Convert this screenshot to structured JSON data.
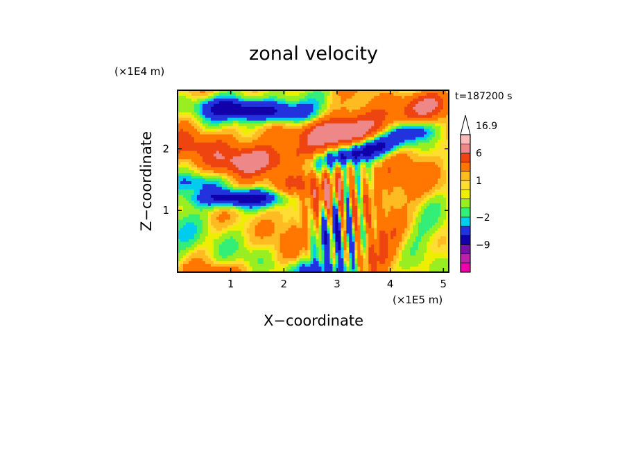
{
  "chart_data": {
    "type": "heatmap",
    "title": "zonal velocity",
    "time_label": "t=187200 s",
    "xlabel": "X−coordinate",
    "ylabel": "Z−coordinate",
    "x_units": "(×1E5 m)",
    "y_units": "(×1E4 m)",
    "xlim": [
      0,
      5.1
    ],
    "ylim": [
      0,
      2.95
    ],
    "x_ticks": [
      1,
      2,
      3,
      4,
      5
    ],
    "x_tick_labels": [
      "1",
      "2",
      "3",
      "4",
      "5"
    ],
    "y_ticks": [
      1,
      2
    ],
    "y_tick_labels": [
      "1",
      "2"
    ],
    "colorbar": {
      "labels": [
        {
          "text": "16.9",
          "value": 16.9
        },
        {
          "text": "6",
          "value": 6
        },
        {
          "text": "1",
          "value": 1
        },
        {
          "text": "−2",
          "value": -2
        },
        {
          "text": "−9",
          "value": -9
        }
      ],
      "bands": [
        {
          "level": -15,
          "color": "#ee00aa"
        },
        {
          "level": -12,
          "color": "#bb22aa"
        },
        {
          "level": -9,
          "color": "#7711aa"
        },
        {
          "level": -6,
          "color": "#1100aa"
        },
        {
          "level": -3,
          "color": "#2233dd"
        },
        {
          "level": -2,
          "color": "#00ccee"
        },
        {
          "level": -1,
          "color": "#33ee77"
        },
        {
          "level": 0,
          "color": "#99ee22"
        },
        {
          "level": 0.5,
          "color": "#eeee00"
        },
        {
          "level": 1,
          "color": "#ffdd33"
        },
        {
          "level": 2,
          "color": "#ffbb22"
        },
        {
          "level": 4,
          "color": "#ff7700"
        },
        {
          "level": 6,
          "color": "#ee4411"
        },
        {
          "level": 10,
          "color": "#ee8888"
        },
        {
          "level": 14,
          "color": "#ffbbbb"
        },
        {
          "level": 16.9,
          "color": "#ffffff"
        }
      ]
    },
    "field_features": [
      {
        "x": 1.0,
        "z": 2.65,
        "value": -8,
        "sx": 0.45,
        "sz": 0.12,
        "tilt": -0.05
      },
      {
        "x": 1.9,
        "z": 2.6,
        "value": -7,
        "sx": 0.45,
        "sz": 0.12,
        "tilt": -0.05
      },
      {
        "x": 3.2,
        "z": 2.3,
        "value": 7,
        "sx": 0.9,
        "sz": 0.2,
        "tilt": 0.15
      },
      {
        "x": 4.4,
        "z": 2.3,
        "value": -7,
        "sx": 0.3,
        "sz": 0.12,
        "tilt": 0.1
      },
      {
        "x": 4.7,
        "z": 2.75,
        "value": 4,
        "sx": 0.4,
        "sz": 0.15,
        "tilt": 0.0
      },
      {
        "x": 3.4,
        "z": 1.95,
        "value": -10,
        "sx": 0.55,
        "sz": 0.12,
        "tilt": 0.2
      },
      {
        "x": 0.4,
        "z": 2.05,
        "value": 4,
        "sx": 0.5,
        "sz": 0.2,
        "tilt": 0.0
      },
      {
        "x": 1.5,
        "z": 1.8,
        "value": 5,
        "sx": 0.7,
        "sz": 0.15,
        "tilt": 0.05
      },
      {
        "x": 1.2,
        "z": 1.2,
        "value": -9,
        "sx": 0.6,
        "sz": 0.1,
        "tilt": 0.0
      },
      {
        "x": 0.3,
        "z": 1.45,
        "value": -3,
        "sx": 0.4,
        "sz": 0.1,
        "tilt": 0.0
      },
      {
        "x": 2.3,
        "z": 1.35,
        "value": 3,
        "sx": 0.7,
        "sz": 0.25,
        "tilt": 0.0
      },
      {
        "x": 4.2,
        "z": 1.45,
        "value": 2,
        "sx": 0.8,
        "sz": 0.35,
        "tilt": 0.0
      },
      {
        "x": 0.5,
        "z": 0.6,
        "value": -1.5,
        "sx": 0.7,
        "sz": 0.4,
        "tilt": 0.0
      },
      {
        "x": 4.6,
        "z": 0.6,
        "value": -1.5,
        "sx": 0.5,
        "sz": 0.3,
        "tilt": 0.0
      },
      {
        "x": 1.8,
        "z": 0.65,
        "value": 1.5,
        "sx": 0.6,
        "sz": 0.3,
        "tilt": 0.0
      },
      {
        "x": 3.0,
        "z": 0.4,
        "value": -4,
        "sx": 0.35,
        "sz": 0.35,
        "tilt": 0.0
      },
      {
        "x": 3.8,
        "z": 0.4,
        "value": 4,
        "sx": 0.4,
        "sz": 0.3,
        "tilt": 0.0
      },
      {
        "x": 2.6,
        "z": 0.05,
        "value": -3,
        "sx": 0.6,
        "sz": 0.08,
        "tilt": 0.0
      },
      {
        "x": 0.8,
        "z": 0.05,
        "value": 2,
        "sx": 0.6,
        "sz": 0.08,
        "tilt": 0.0
      }
    ]
  }
}
